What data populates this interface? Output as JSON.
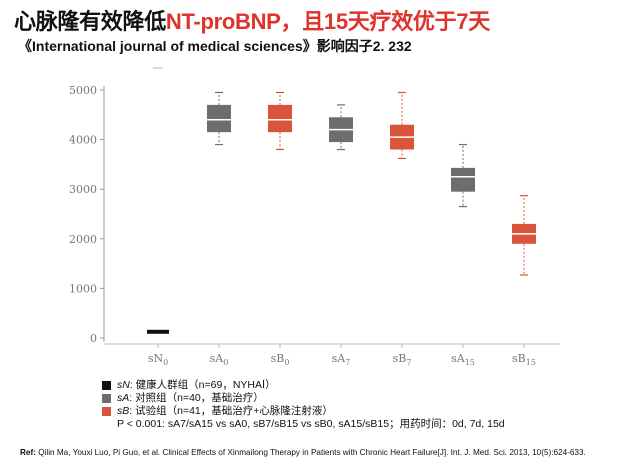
{
  "title": {
    "part1": "心脉隆有效降低",
    "part2": "NT-proBNP，且15天疗效优于7天"
  },
  "subtitle": "《International journal of medical sciences》影响因子2. 232",
  "colors": {
    "black": "#111111",
    "gray": "#6d6d6d",
    "red": "#d9543a",
    "highlight": "#e0322b"
  },
  "chart_data": {
    "type": "box",
    "title": "",
    "xlabel": "",
    "ylabel": "",
    "ylim": [
      0,
      5000
    ],
    "yticks": [
      0,
      1000,
      2000,
      3000,
      4000,
      5000
    ],
    "categories": [
      "sN0",
      "sA0",
      "sB0",
      "sA7",
      "sB7",
      "sA15",
      "sB15"
    ],
    "category_labels": [
      {
        "base": "sN",
        "sub": "0"
      },
      {
        "base": "sA",
        "sub": "0"
      },
      {
        "base": "sB",
        "sub": "0"
      },
      {
        "base": "sA",
        "sub": "7"
      },
      {
        "base": "sB",
        "sub": "7"
      },
      {
        "base": "sA",
        "sub": "15"
      },
      {
        "base": "sB",
        "sub": "15"
      }
    ],
    "boxes": [
      {
        "name": "sN0",
        "group": "N",
        "min": 120,
        "q1": 120,
        "median": 125,
        "q3": 130,
        "max": 135
      },
      {
        "name": "sA0",
        "group": "A",
        "min": 3900,
        "q1": 4150,
        "median": 4400,
        "q3": 4700,
        "max": 4950
      },
      {
        "name": "sB0",
        "group": "B",
        "min": 3800,
        "q1": 4150,
        "median": 4400,
        "q3": 4700,
        "max": 4950
      },
      {
        "name": "sA7",
        "group": "A",
        "min": 3800,
        "q1": 3950,
        "median": 4200,
        "q3": 4450,
        "max": 4700
      },
      {
        "name": "sB7",
        "group": "B",
        "min": 3620,
        "q1": 3800,
        "median": 4050,
        "q3": 4300,
        "max": 4950
      },
      {
        "name": "sA15",
        "group": "A",
        "min": 2650,
        "q1": 2950,
        "median": 3250,
        "q3": 3430,
        "max": 3900
      },
      {
        "name": "sB15",
        "group": "B",
        "min": 1270,
        "q1": 1900,
        "median": 2100,
        "q3": 2300,
        "max": 2870
      }
    ]
  },
  "legend": {
    "items": [
      {
        "label": "sN",
        "desc": ":  健康人群组（n=69，NYHAⅠ）",
        "color": "#111111"
      },
      {
        "label": "sA",
        "desc": ":  对照组（n=40，基础治疗）",
        "color": "#6d6d6d"
      },
      {
        "label": "sB",
        "desc": ":  试验组（n=41，基础治疗+心脉隆注射液）",
        "color": "#d9543a"
      }
    ],
    "stat": "P < 0.001: sA7/sA15 vs sA0, sB7/sB15 vs sB0, sA15/sB15；用药时间：0d, 7d, 15d"
  },
  "reference": {
    "label": "Ref:",
    "text": " Qilin Ma, Youxi Luo, Pi Guo, et al. Clinical Effects of Xinmailong Therapy in Patients with Chronic Heart Failure[J]. Int. J. Med. Sci. 2013, 10(5):624-633."
  }
}
